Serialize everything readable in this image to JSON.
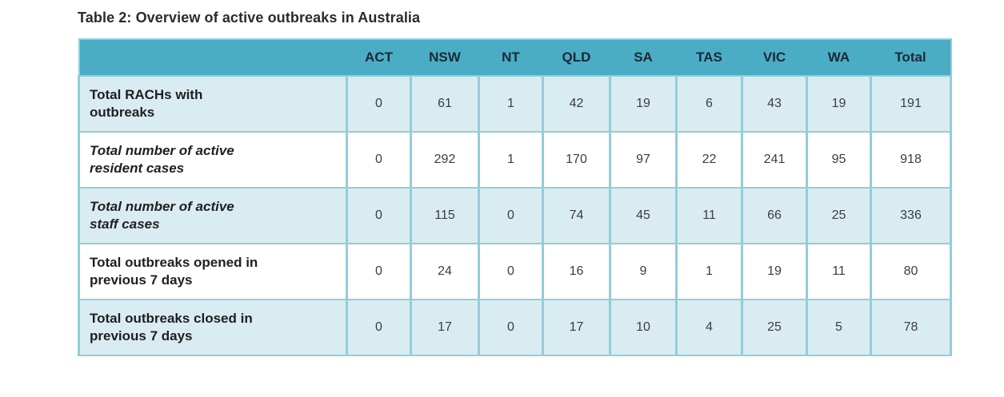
{
  "page": {
    "title": "Table 2: Overview of active outbreaks in Australia"
  },
  "table": {
    "corner_label": "",
    "columns": [
      "ACT",
      "NSW",
      "NT",
      "QLD",
      "SA",
      "TAS",
      "VIC",
      "WA",
      "Total"
    ],
    "rows": [
      {
        "label": "Total RACHs with\noutbreaks",
        "style": "bold",
        "values": [
          0,
          61,
          1,
          42,
          19,
          6,
          43,
          19,
          191
        ]
      },
      {
        "label": "Total number of active\nresident cases",
        "style": "bold-italic",
        "values": [
          0,
          292,
          1,
          170,
          97,
          22,
          241,
          95,
          918
        ]
      },
      {
        "label": "Total number of active\nstaff cases",
        "style": "bold-italic",
        "values": [
          0,
          115,
          0,
          74,
          45,
          11,
          66,
          25,
          336
        ]
      },
      {
        "label": "Total outbreaks opened in\nprevious 7 days",
        "style": "bold",
        "values": [
          0,
          24,
          0,
          16,
          9,
          1,
          19,
          11,
          80
        ]
      },
      {
        "label": "Total outbreaks closed in\nprevious 7 days",
        "style": "bold",
        "values": [
          0,
          17,
          0,
          17,
          10,
          4,
          25,
          5,
          78
        ]
      }
    ],
    "colors": {
      "header_bg": "#4BACC6",
      "banded_row_bg": "#D9ECF2",
      "plain_row_bg": "#FFFFFF",
      "border": "#92CDDC",
      "header_text": "#1A2A33",
      "body_text": "#1F1F1F"
    }
  }
}
